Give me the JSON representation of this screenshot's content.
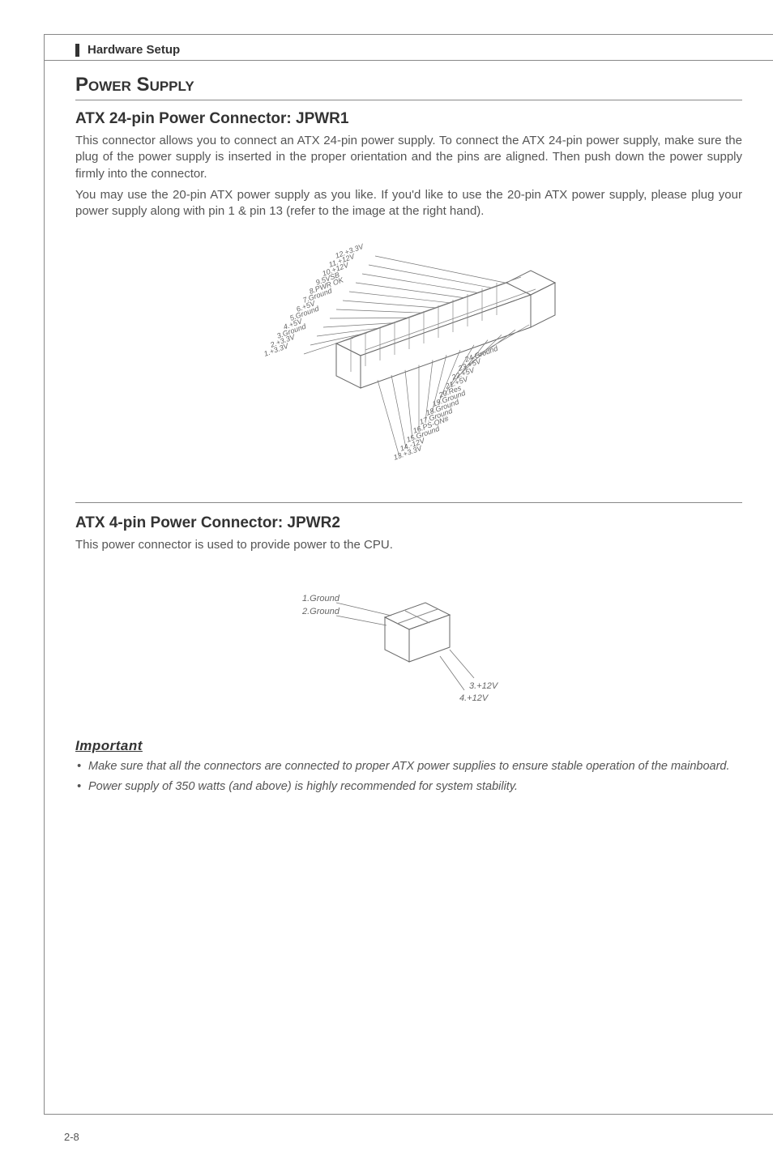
{
  "tab": {
    "title": "Hardware Setup"
  },
  "section": {
    "title": "Power Supply"
  },
  "connectorA": {
    "title": "ATX 24-pin Power Connector: JPWR1",
    "para1": "This connector allows you to connect an ATX 24-pin power supply. To connect the ATX 24-pin power supply, make sure the plug of the power supply is inserted in the proper orientation and the pins are aligned. Then push down the power supply firmly into the connector.",
    "para2": "You may use the 20-pin ATX power supply as you like. If you'd like to use the 20-pin ATX power supply, please plug your power supply along with pin 1 & pin 13 (refer to the image at the right hand).",
    "pins_top": [
      "12.+3.3V",
      "11.+12V",
      "10.+12V",
      "9.5VSB",
      "8.PWR OK",
      "7.Ground",
      "6.+5V",
      "5.Ground",
      "4.+5V",
      "3.Ground",
      "2.+3.3V",
      "1.+3.3V"
    ],
    "pins_bottom": [
      "24.Ground",
      "23.+5V",
      "22.+5V",
      "21.+5V",
      "20.Res",
      "19.Ground",
      "18.Ground",
      "17.Ground",
      "16.PS-ON#",
      "15.Ground",
      "14.-12V",
      "13.+3.3V"
    ]
  },
  "connectorB": {
    "title": "ATX 4-pin Power Connector: JPWR2",
    "para": "This power connector is used to provide power to the CPU.",
    "pins_left": [
      "1.Ground",
      "2.Ground"
    ],
    "pins_right": [
      "3.+12V",
      "4.+12V"
    ]
  },
  "important": {
    "heading": "Important",
    "items": [
      "Make sure that all the connectors are connected to proper ATX power supplies to ensure stable operation of the mainboard.",
      "Power supply of 350 watts (and above) is highly recommended for system stability."
    ]
  },
  "page_number": "2-8",
  "style": {
    "title_color": "#333333",
    "body_color": "#555555",
    "border_color": "#888888",
    "pin_label_color": "#666666",
    "background": "#ffffff",
    "connector_fill": "#ffffff",
    "connector_stroke": "#666666"
  }
}
